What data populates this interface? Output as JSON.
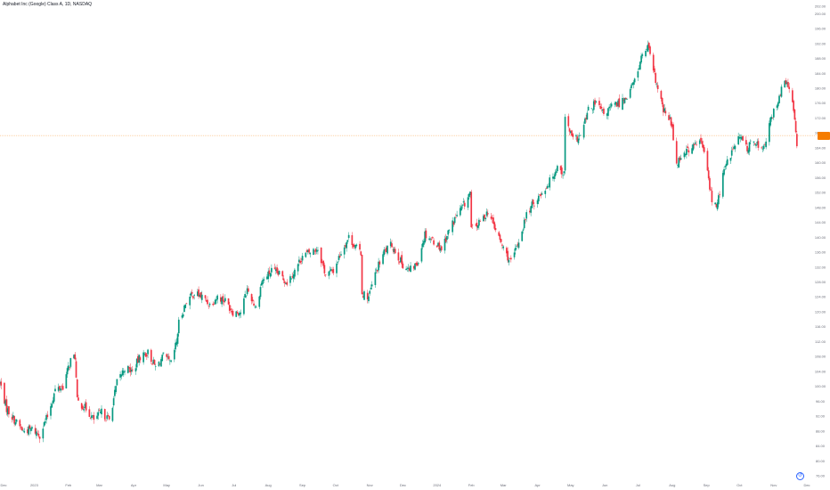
{
  "title": "Alphabet Inc (Google) Class A, 1D, NASDAQ",
  "chart_data": {
    "type": "candlestick",
    "symbol": "Alphabet Inc (Google) Class A",
    "interval": "1D",
    "exchange": "NASDAQ",
    "ylim": [
      76,
      202
    ],
    "xlim": [
      "2022-12-01",
      "2024-12-01"
    ],
    "y_ticks": [
      "202.00",
      "200.00",
      "196.00",
      "192.00",
      "188.00",
      "184.00",
      "180.00",
      "176.00",
      "172.00",
      "168.00",
      "164.00",
      "160.00",
      "156.00",
      "152.00",
      "148.00",
      "144.00",
      "140.00",
      "136.00",
      "132.00",
      "128.00",
      "124.00",
      "120.00",
      "116.00",
      "112.00",
      "108.00",
      "104.00",
      "100.00",
      "96.00",
      "92.00",
      "88.00",
      "84.00",
      "80.00",
      "76.00"
    ],
    "x_ticks": [
      {
        "date": "2022-12-01",
        "label": "Dec"
      },
      {
        "date": "2023-01-01",
        "label": "2023"
      },
      {
        "date": "2023-02-01",
        "label": "Feb"
      },
      {
        "date": "2023-03-01",
        "label": "Mar"
      },
      {
        "date": "2023-04-01",
        "label": "Apr"
      },
      {
        "date": "2023-05-01",
        "label": "May"
      },
      {
        "date": "2023-06-01",
        "label": "Jun"
      },
      {
        "date": "2023-07-01",
        "label": "Jul"
      },
      {
        "date": "2023-08-01",
        "label": "Aug"
      },
      {
        "date": "2023-09-01",
        "label": "Sep"
      },
      {
        "date": "2023-10-01",
        "label": "Oct"
      },
      {
        "date": "2023-11-01",
        "label": "Nov"
      },
      {
        "date": "2023-12-01",
        "label": "Dec"
      },
      {
        "date": "2024-01-01",
        "label": "2024"
      },
      {
        "date": "2024-02-01",
        "label": "Feb"
      },
      {
        "date": "2024-03-01",
        "label": "Mar"
      },
      {
        "date": "2024-04-01",
        "label": "Apr"
      },
      {
        "date": "2024-05-01",
        "label": "May"
      },
      {
        "date": "2024-06-01",
        "label": "Jun"
      },
      {
        "date": "2024-07-01",
        "label": "Jul"
      },
      {
        "date": "2024-08-01",
        "label": "Aug"
      },
      {
        "date": "2024-09-01",
        "label": "Sep"
      },
      {
        "date": "2024-10-01",
        "label": "Oct"
      },
      {
        "date": "2024-11-01",
        "label": "Nov"
      },
      {
        "date": "2024-12-01",
        "label": "Dec"
      }
    ],
    "up_color": "#089981",
    "down_color": "#f23645",
    "last_price_line": 167.3,
    "last_price_label": "",
    "price_badge_color": "#f57c00",
    "path": [
      [
        "2022-12-01",
        101
      ],
      [
        "2022-12-07",
        94
      ],
      [
        "2022-12-14",
        91
      ],
      [
        "2022-12-22",
        88
      ],
      [
        "2022-12-30",
        88.5
      ],
      [
        "2023-01-06",
        87
      ],
      [
        "2023-01-13",
        92
      ],
      [
        "2023-01-20",
        99
      ],
      [
        "2023-01-27",
        100
      ],
      [
        "2023-02-03",
        107
      ],
      [
        "2023-02-07",
        108
      ],
      [
        "2023-02-09",
        96
      ],
      [
        "2023-02-17",
        94
      ],
      [
        "2023-02-24",
        91
      ],
      [
        "2023-03-03",
        93
      ],
      [
        "2023-03-10",
        91
      ],
      [
        "2023-03-17",
        101
      ],
      [
        "2023-03-24",
        105
      ],
      [
        "2023-03-31",
        104
      ],
      [
        "2023-04-07",
        108
      ],
      [
        "2023-04-14",
        109
      ],
      [
        "2023-04-21",
        105
      ],
      [
        "2023-04-28",
        108
      ],
      [
        "2023-05-05",
        106
      ],
      [
        "2023-05-10",
        112
      ],
      [
        "2023-05-12",
        117
      ],
      [
        "2023-05-19",
        123
      ],
      [
        "2023-05-26",
        125
      ],
      [
        "2023-06-02",
        124
      ],
      [
        "2023-06-09",
        122
      ],
      [
        "2023-06-16",
        124
      ],
      [
        "2023-06-23",
        123
      ],
      [
        "2023-06-30",
        120
      ],
      [
        "2023-07-07",
        120
      ],
      [
        "2023-07-13",
        126
      ],
      [
        "2023-07-21",
        121
      ],
      [
        "2023-07-26",
        128
      ],
      [
        "2023-08-04",
        131
      ],
      [
        "2023-08-11",
        130
      ],
      [
        "2023-08-18",
        128
      ],
      [
        "2023-08-25",
        131
      ],
      [
        "2023-09-01",
        135
      ],
      [
        "2023-09-08",
        136
      ],
      [
        "2023-09-15",
        137
      ],
      [
        "2023-09-22",
        130
      ],
      [
        "2023-09-29",
        131
      ],
      [
        "2023-10-06",
        136
      ],
      [
        "2023-10-13",
        140
      ],
      [
        "2023-10-20",
        137
      ],
      [
        "2023-10-24",
        136
      ],
      [
        "2023-10-25",
        125
      ],
      [
        "2023-10-31",
        124
      ],
      [
        "2023-11-07",
        131
      ],
      [
        "2023-11-14",
        136
      ],
      [
        "2023-11-21",
        138
      ],
      [
        "2023-11-30",
        133
      ],
      [
        "2023-12-07",
        131
      ],
      [
        "2023-12-14",
        133
      ],
      [
        "2023-12-21",
        141
      ],
      [
        "2023-12-29",
        139
      ],
      [
        "2024-01-05",
        137
      ],
      [
        "2024-01-12",
        142
      ],
      [
        "2024-01-19",
        146
      ],
      [
        "2024-01-26",
        149
      ],
      [
        "2024-01-31",
        152
      ],
      [
        "2024-02-01",
        142
      ],
      [
        "2024-02-09",
        144
      ],
      [
        "2024-02-16",
        147
      ],
      [
        "2024-02-23",
        142
      ],
      [
        "2024-03-01",
        137
      ],
      [
        "2024-03-08",
        133
      ],
      [
        "2024-03-15",
        139
      ],
      [
        "2024-03-22",
        146
      ],
      [
        "2024-03-28",
        149
      ],
      [
        "2024-04-05",
        152
      ],
      [
        "2024-04-12",
        155
      ],
      [
        "2024-04-19",
        159
      ],
      [
        "2024-04-25",
        157
      ],
      [
        "2024-04-26",
        172
      ],
      [
        "2024-05-03",
        166
      ],
      [
        "2024-05-10",
        167
      ],
      [
        "2024-05-17",
        174
      ],
      [
        "2024-05-24",
        176
      ],
      [
        "2024-05-31",
        173
      ],
      [
        "2024-06-07",
        175
      ],
      [
        "2024-06-14",
        176
      ],
      [
        "2024-06-21",
        178
      ],
      [
        "2024-06-28",
        182
      ],
      [
        "2024-07-05",
        189
      ],
      [
        "2024-07-10",
        191
      ],
      [
        "2024-07-17",
        182
      ],
      [
        "2024-07-24",
        174
      ],
      [
        "2024-07-31",
        171
      ],
      [
        "2024-08-05",
        160
      ],
      [
        "2024-08-12",
        163
      ],
      [
        "2024-08-19",
        164
      ],
      [
        "2024-08-26",
        166
      ],
      [
        "2024-08-30",
        163
      ],
      [
        "2024-09-06",
        150
      ],
      [
        "2024-09-10",
        148
      ],
      [
        "2024-09-17",
        158
      ],
      [
        "2024-09-24",
        163
      ],
      [
        "2024-10-01",
        167
      ],
      [
        "2024-10-08",
        164
      ],
      [
        "2024-10-15",
        166
      ],
      [
        "2024-10-22",
        163
      ],
      [
        "2024-10-29",
        171
      ],
      [
        "2024-11-06",
        178
      ],
      [
        "2024-11-12",
        182
      ],
      [
        "2024-11-18",
        176
      ],
      [
        "2024-11-20",
        172
      ],
      [
        "2024-11-22",
        165
      ]
    ]
  },
  "icons": {
    "goto_realtime": "go-to-realtime-icon"
  }
}
